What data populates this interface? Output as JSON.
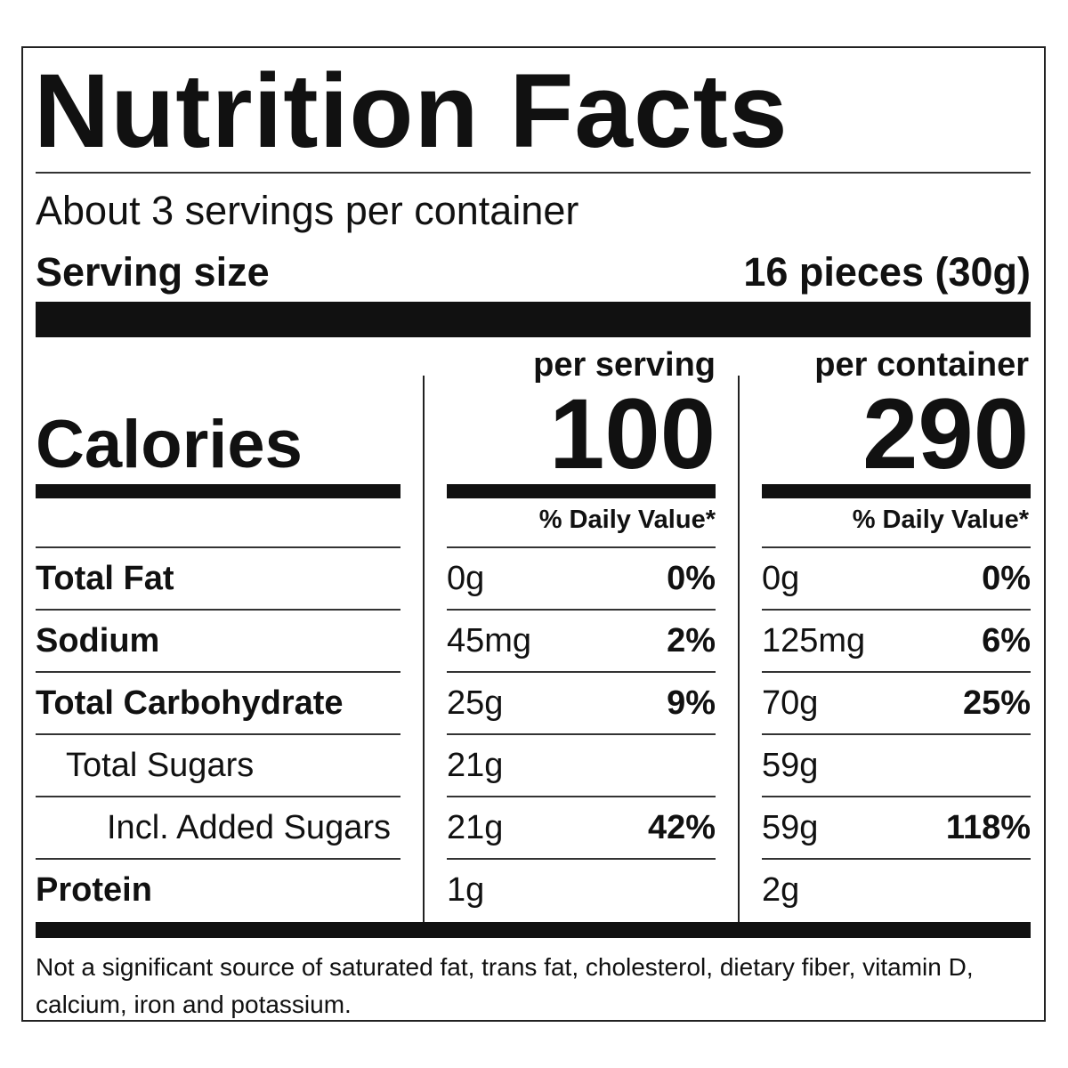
{
  "label": {
    "title": "Nutrition Facts",
    "servings_per_container": "About 3 servings per container",
    "serving_size_label": "Serving size",
    "serving_size_value": "16 pieces (30g)",
    "calories_label": "Calories",
    "columns": [
      {
        "header": "per serving",
        "calories": "100",
        "dv_header": "% Daily Value*"
      },
      {
        "header": "per container",
        "calories": "290",
        "dv_header": "% Daily Value*"
      }
    ],
    "nutrients": [
      {
        "name": "Total Fat",
        "bold": true,
        "indent": 0,
        "serving_amount": "0g",
        "serving_dv": "0%",
        "container_amount": "0g",
        "container_dv": "0%"
      },
      {
        "name": "Sodium",
        "bold": true,
        "indent": 0,
        "serving_amount": "45mg",
        "serving_dv": "2%",
        "container_amount": "125mg",
        "container_dv": "6%"
      },
      {
        "name": "Total Carbohydrate",
        "bold": true,
        "indent": 0,
        "serving_amount": "25g",
        "serving_dv": "9%",
        "container_amount": "70g",
        "container_dv": "25%"
      },
      {
        "name": "Total Sugars",
        "bold": false,
        "indent": 1,
        "serving_amount": "21g",
        "serving_dv": "",
        "container_amount": "59g",
        "container_dv": ""
      },
      {
        "name": "Incl. Added Sugars",
        "bold": false,
        "indent": 2,
        "serving_amount": "21g",
        "serving_dv": "42%",
        "container_amount": "59g",
        "container_dv": "118%"
      },
      {
        "name": "Protein",
        "bold": true,
        "indent": 0,
        "serving_amount": "1g",
        "serving_dv": "",
        "container_amount": "2g",
        "container_dv": ""
      }
    ],
    "footnote": "Not a significant source of saturated fat, trans fat, cholesterol, dietary fiber, vitamin D, calcium, iron and potassium."
  },
  "colors": {
    "ink": "#111111",
    "background": "#ffffff"
  }
}
